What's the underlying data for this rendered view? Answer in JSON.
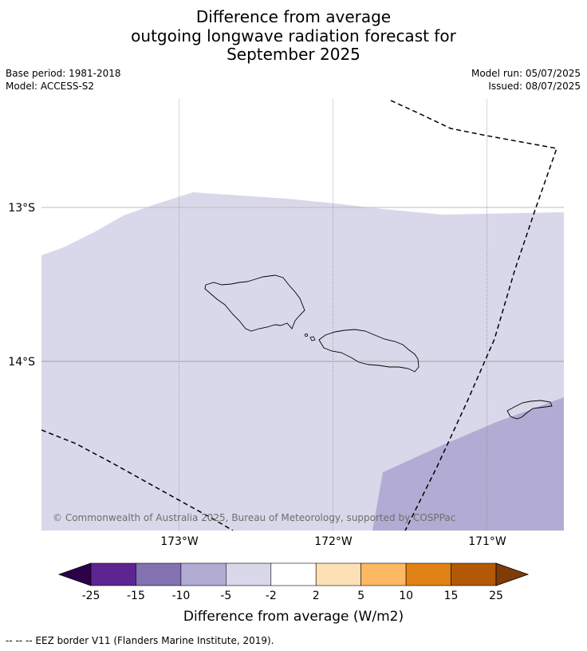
{
  "title": {
    "line1": "Difference from average",
    "line2": "outgoing longwave radiation forecast for",
    "line3": "September 2025"
  },
  "meta": {
    "base_period": "Base period: 1981-2018",
    "model": "Model: ACCESS-S2",
    "model_run": "Model run: 05/07/2025",
    "issued": "Issued: 08/07/2025"
  },
  "map": {
    "lat_labels": [
      "13°S",
      "14°S"
    ],
    "lon_labels": [
      "173°W",
      "172°W",
      "171°W"
    ],
    "copyright": "© Commonwealth of Australia 2025, Bureau of Meteorology, supported by COSPPac",
    "region_colors": {
      "light": "#d8d8ea",
      "medium": "#b2acd4"
    }
  },
  "colorbar": {
    "title": "Difference from average (W/m2)",
    "labels": [
      "-25",
      "-15",
      "-10",
      "-5",
      "-2",
      "2",
      "5",
      "10",
      "15",
      "25"
    ],
    "colors": [
      "#5c2592",
      "#8272b1",
      "#b2acd4",
      "#d8d8ea",
      "#ffffff",
      "#fee0b6",
      "#fdb863",
      "#e08214",
      "#b35806"
    ],
    "extend_low": "#2d004b",
    "extend_high": "#7f3b08"
  },
  "footer": "--  --  -- EEZ border V11 (Flanders Marine Institute, 2019)."
}
